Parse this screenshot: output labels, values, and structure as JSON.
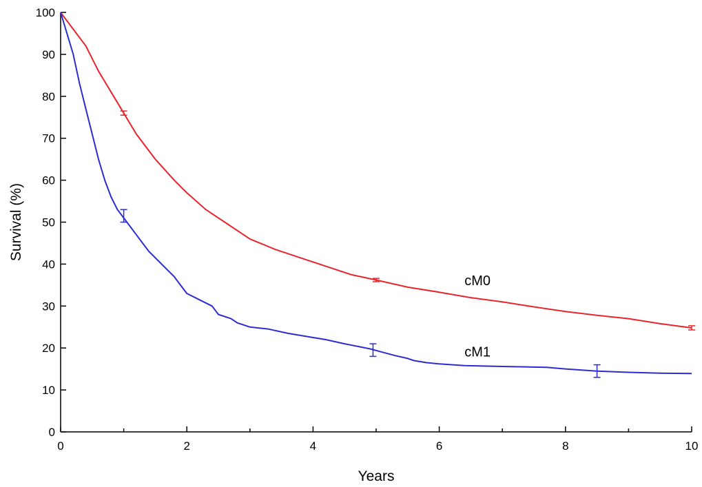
{
  "chart_data": {
    "type": "line",
    "title": "",
    "xlabel": "Years",
    "ylabel": "Survival (%)",
    "xlim": [
      0,
      10
    ],
    "ylim": [
      0,
      100
    ],
    "x_ticks": [
      0,
      2,
      4,
      6,
      8,
      10
    ],
    "x_minor_ticks": [
      1,
      3,
      5,
      7,
      9
    ],
    "y_ticks": [
      0,
      10,
      20,
      30,
      40,
      50,
      60,
      70,
      80,
      90,
      100
    ],
    "grid": false,
    "series": [
      {
        "name": "cM0",
        "color": "#e8242b",
        "label_at": [
          6.4,
          35
        ],
        "x": [
          0,
          0.2,
          0.4,
          0.6,
          0.8,
          1.0,
          1.2,
          1.5,
          1.8,
          2.0,
          2.3,
          2.6,
          3.0,
          3.4,
          3.8,
          4.2,
          4.6,
          5.0,
          5.5,
          6.0,
          6.5,
          7.0,
          7.5,
          8.0,
          8.5,
          9.0,
          9.5,
          10.0
        ],
        "y": [
          100,
          96,
          92,
          86,
          81,
          76,
          71,
          65,
          60,
          57,
          53,
          50,
          46,
          43.5,
          41.5,
          39.5,
          37.5,
          36.2,
          34.5,
          33.3,
          32,
          31,
          29.8,
          28.7,
          27.8,
          27,
          25.8,
          24.8
        ],
        "error_bars": [
          {
            "x": 1.0,
            "y": 76,
            "low": 75.5,
            "high": 76.5
          },
          {
            "x": 5.0,
            "y": 36.2,
            "low": 35.8,
            "high": 36.6
          },
          {
            "x": 10.0,
            "y": 24.8,
            "low": 24.3,
            "high": 25.3
          }
        ]
      },
      {
        "name": "cM1",
        "color": "#2b2bd4",
        "label_at": [
          6.4,
          18
        ],
        "x": [
          0,
          0.1,
          0.2,
          0.3,
          0.4,
          0.5,
          0.6,
          0.7,
          0.8,
          0.9,
          1.0,
          1.1,
          1.2,
          1.4,
          1.6,
          1.8,
          1.9,
          2.0,
          2.2,
          2.4,
          2.5,
          2.7,
          2.8,
          3.0,
          3.3,
          3.6,
          4.0,
          4.2,
          4.5,
          4.9,
          5.1,
          5.3,
          5.5,
          5.6,
          5.8,
          6.0,
          6.4,
          7.0,
          7.7,
          8.0,
          8.5,
          9.0,
          9.5,
          10.0
        ],
        "y": [
          100,
          95,
          90,
          83,
          77,
          71,
          65,
          60,
          56,
          53,
          51,
          49,
          47,
          43,
          40,
          37,
          35,
          33,
          31.5,
          30,
          28,
          27,
          26,
          25,
          24.5,
          23.5,
          22.5,
          22,
          21,
          19.8,
          19,
          18.2,
          17.5,
          17,
          16.5,
          16.2,
          15.8,
          15.6,
          15.4,
          15,
          14.5,
          14.2,
          14,
          13.9
        ],
        "error_bars": [
          {
            "x": 1.0,
            "y": 51.5,
            "low": 50,
            "high": 53
          },
          {
            "x": 4.95,
            "y": 19.5,
            "low": 18,
            "high": 21
          },
          {
            "x": 8.5,
            "y": 14.5,
            "low": 13,
            "high": 16
          }
        ]
      }
    ]
  }
}
